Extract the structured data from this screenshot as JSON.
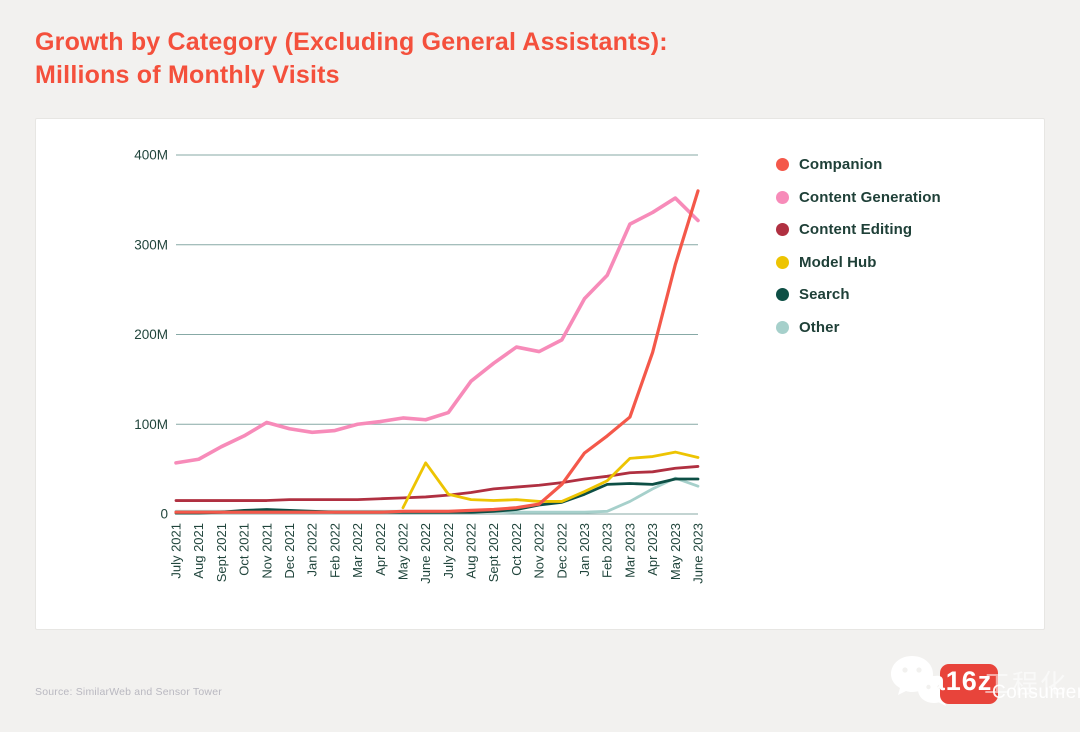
{
  "title_line1": "Growth by Category (Excluding General Assistants):",
  "title_line2": "Millions of Monthly Visits",
  "source": "Source: SimilarWeb and Sensor Tower",
  "watermark": {
    "wechat_icon": "wechat-icon",
    "box_text": "a16z",
    "brand_text": "Consumer",
    "overlay_text": "工程化",
    "box_color": "#e8443b"
  },
  "colors": {
    "title": "#f4503c",
    "axis_text": "#21453c",
    "gridline": "#87a9a6",
    "page_bg": "#f2f1ef",
    "card_bg": "#ffffff"
  },
  "chart_data": {
    "type": "line",
    "title": "Growth by Category (Excluding General Assistants): Millions of Monthly Visits",
    "xlabel": "",
    "ylabel": "",
    "ylim": [
      0,
      400
    ],
    "grid": true,
    "legend_position": "right",
    "yticks": [
      {
        "value": 0,
        "label": "0"
      },
      {
        "value": 100,
        "label": "100M"
      },
      {
        "value": 200,
        "label": "200M"
      },
      {
        "value": 300,
        "label": "300M"
      },
      {
        "value": 400,
        "label": "400M"
      }
    ],
    "categories": [
      "July 2021",
      "Aug 2021",
      "Sept 2021",
      "Oct 2021",
      "Nov 2021",
      "Dec 2021",
      "Jan 2022",
      "Feb 2022",
      "Mar 2022",
      "Apr 2022",
      "May 2022",
      "June 2022",
      "July 2022",
      "Aug 2022",
      "Sept 2022",
      "Oct 2022",
      "Nov 2022",
      "Dec 2022",
      "Jan 2023",
      "Feb 2023",
      "Mar 2023",
      "Apr 2023",
      "May 2023",
      "June 2023"
    ],
    "series": [
      {
        "name": "Companion",
        "color": "#f4584a",
        "width": 3.2,
        "z": 6,
        "values": [
          2,
          2,
          2,
          2,
          2,
          2,
          2,
          2,
          2,
          2,
          3,
          3,
          3,
          4,
          5,
          7,
          11,
          33,
          68,
          87,
          108,
          180,
          278,
          360
        ]
      },
      {
        "name": "Content Generation",
        "color": "#f78bb9",
        "width": 3.6,
        "z": 5,
        "values": [
          57,
          61,
          75,
          87,
          102,
          95,
          91,
          93,
          100,
          103,
          107,
          105,
          113,
          148,
          168,
          186,
          181,
          194,
          240,
          266,
          323,
          336,
          352,
          327
        ]
      },
      {
        "name": "Content Editing",
        "color": "#b03041",
        "width": 2.8,
        "z": 3,
        "values": [
          15,
          15,
          15,
          15,
          15,
          16,
          16,
          16,
          16,
          17,
          18,
          19,
          21,
          24,
          28,
          30,
          32,
          35,
          39,
          42,
          46,
          47,
          51,
          53
        ]
      },
      {
        "name": "Model Hub",
        "color": "#edc402",
        "width": 2.8,
        "z": 4,
        "values": [
          null,
          null,
          null,
          null,
          null,
          null,
          null,
          null,
          null,
          null,
          7,
          57,
          22,
          16,
          15,
          16,
          14,
          14,
          25,
          37,
          62,
          64,
          69,
          63
        ]
      },
      {
        "name": "Search",
        "color": "#0d4f45",
        "width": 2.8,
        "z": 2,
        "values": [
          1,
          1,
          2,
          4,
          5,
          4,
          3,
          2,
          2,
          2,
          2,
          2,
          2,
          2,
          3,
          5,
          10,
          13,
          22,
          33,
          34,
          33,
          39,
          39
        ]
      },
      {
        "name": "Other",
        "color": "#a6d0cb",
        "width": 2.8,
        "z": 1,
        "values": [
          3,
          3,
          3,
          3,
          3,
          3,
          3,
          3,
          3,
          3,
          3,
          3,
          3,
          3,
          3,
          2,
          2,
          2,
          2,
          3,
          14,
          28,
          40,
          31
        ]
      }
    ]
  }
}
